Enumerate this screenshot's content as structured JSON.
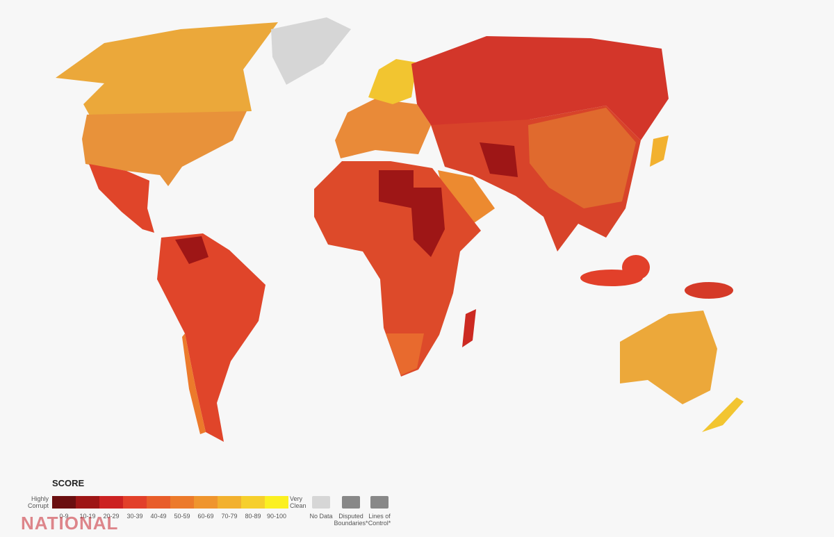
{
  "legend": {
    "title": "SCORE",
    "low_label": "Highly Corrupt",
    "high_label": "Very Clean",
    "bins": [
      {
        "label": "0-9",
        "color": "#6b0f10"
      },
      {
        "label": "10-19",
        "color": "#9e1616"
      },
      {
        "label": "20-29",
        "color": "#cc2222"
      },
      {
        "label": "30-39",
        "color": "#e2402a"
      },
      {
        "label": "40-49",
        "color": "#e85d2a"
      },
      {
        "label": "50-59",
        "color": "#ec7a2b"
      },
      {
        "label": "60-69",
        "color": "#ef952e"
      },
      {
        "label": "70-79",
        "color": "#f2b12f"
      },
      {
        "label": "80-89",
        "color": "#f6cf2c"
      },
      {
        "label": "90-100",
        "color": "#fbf021"
      }
    ],
    "no_data": "No Data",
    "disputed": "Disputed Boundaries*",
    "lines_of_control": "Lines of Control*"
  },
  "watermark": "NATIONAL"
}
